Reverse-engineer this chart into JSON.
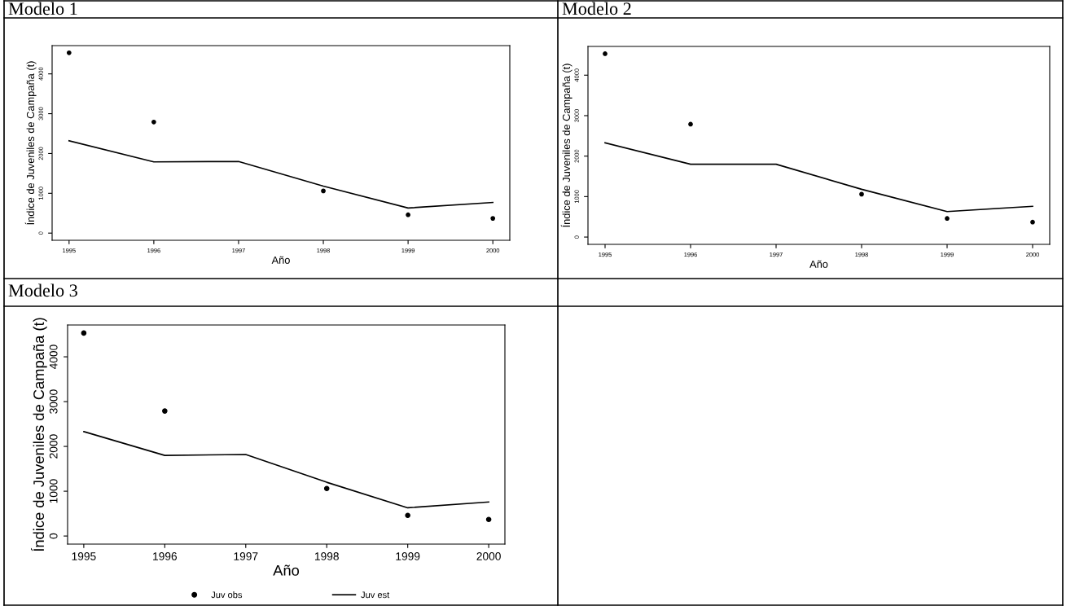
{
  "chart_data": [
    {
      "type": "line",
      "title": "Modelo 1",
      "xlabel": "Año",
      "ylabel": "Índice de Juveniles de Campaña (t)",
      "x": [
        1995,
        1996,
        1997,
        1998,
        1999,
        2000
      ],
      "xlim": [
        1994.8,
        2000.2
      ],
      "ylim": [
        -180,
        4710
      ],
      "xticks": [
        1995,
        1996,
        1997,
        1998,
        1999,
        2000
      ],
      "yticks": [
        0,
        1000,
        2000,
        3000,
        4000
      ],
      "grid": false,
      "legend": false,
      "series": [
        {
          "type": "scatter",
          "marker": "circle",
          "color": "#000000",
          "values": [
            4530,
            2790,
            null,
            1060,
            460,
            370
          ]
        },
        {
          "type": "line",
          "line_style": "solid",
          "color": "#000000",
          "values": [
            2320,
            1790,
            1800,
            1180,
            630,
            770
          ]
        }
      ]
    },
    {
      "type": "line",
      "title": "Modelo 2",
      "xlabel": "Año",
      "ylabel": "Índice de Juveniles de Campaña (t)",
      "x": [
        1995,
        1996,
        1997,
        1998,
        1999,
        2000
      ],
      "xlim": [
        1994.8,
        2000.2
      ],
      "ylim": [
        -180,
        4710
      ],
      "xticks": [
        1995,
        1996,
        1997,
        1998,
        1999,
        2000
      ],
      "yticks": [
        0,
        1000,
        2000,
        3000,
        4000
      ],
      "grid": false,
      "legend": false,
      "series": [
        {
          "type": "scatter",
          "marker": "circle",
          "color": "#000000",
          "values": [
            4530,
            2790,
            null,
            1060,
            460,
            370
          ]
        },
        {
          "type": "line",
          "line_style": "solid",
          "color": "#000000",
          "values": [
            2330,
            1800,
            1800,
            1180,
            630,
            760
          ]
        }
      ]
    },
    {
      "type": "line",
      "title": "Modelo 3",
      "xlabel": "Año",
      "ylabel": "Índice de Juveniles de Campaña (t)",
      "x": [
        1995,
        1996,
        1997,
        1998,
        1999,
        2000
      ],
      "xlim": [
        1994.8,
        2000.2
      ],
      "ylim": [
        -180,
        4710
      ],
      "xticks": [
        1995,
        1996,
        1997,
        1998,
        1999,
        2000
      ],
      "yticks": [
        0,
        1000,
        2000,
        3000,
        4000
      ],
      "grid": false,
      "legend": "bottom",
      "series": [
        {
          "type": "scatter",
          "name": "Juv obs",
          "marker": "circle",
          "color": "#000000",
          "values": [
            4530,
            2790,
            null,
            1060,
            460,
            370
          ]
        },
        {
          "type": "line",
          "name": "Juv est",
          "line_style": "solid",
          "color": "#000000",
          "values": [
            2330,
            1800,
            1820,
            1200,
            630,
            760
          ]
        }
      ]
    }
  ]
}
